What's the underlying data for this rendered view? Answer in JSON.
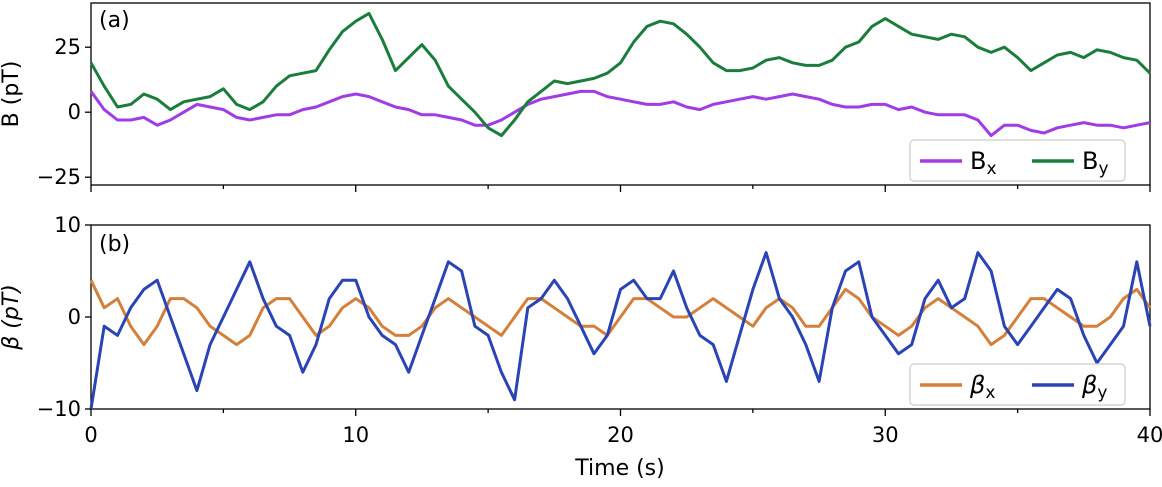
{
  "figure": {
    "xlabel": "Time (s)",
    "x_ticks": [
      "0",
      "10",
      "20",
      "30",
      "40"
    ]
  },
  "chart_data": [
    {
      "type": "line",
      "panel_label": "(a)",
      "ylabel": "B (pT)",
      "xlim": [
        0,
        40
      ],
      "ylim": [
        -28,
        42
      ],
      "y_ticks": [
        "25",
        "0",
        "−25"
      ],
      "grid": false,
      "legend_placement": "bottom-right",
      "series": [
        {
          "name": "Bx",
          "name_main": "B",
          "name_sub": "x",
          "color": "#a03be6",
          "x": [
            0,
            0.5,
            1,
            1.5,
            2,
            2.5,
            3,
            3.5,
            4,
            4.5,
            5,
            5.5,
            6,
            6.5,
            7,
            7.5,
            8,
            8.5,
            9,
            9.5,
            10,
            10.5,
            11,
            11.5,
            12,
            12.5,
            13,
            13.5,
            14,
            14.5,
            15,
            15.5,
            16,
            16.5,
            17,
            17.5,
            18,
            18.5,
            19,
            19.5,
            20,
            20.5,
            21,
            21.5,
            22,
            22.5,
            23,
            23.5,
            24,
            24.5,
            25,
            25.5,
            26,
            26.5,
            27,
            27.5,
            28,
            28.5,
            29,
            29.5,
            30,
            30.5,
            31,
            31.5,
            32,
            32.5,
            33,
            33.5,
            34,
            34.5,
            35,
            35.5,
            36,
            36.5,
            37,
            37.5,
            38,
            38.5,
            39,
            39.5,
            40
          ],
          "values": [
            8,
            1,
            -3,
            -3,
            -2,
            -5,
            -3,
            0,
            3,
            2,
            1,
            -2,
            -3,
            -2,
            -1,
            -1,
            1,
            2,
            4,
            6,
            7,
            6,
            4,
            2,
            1,
            -1,
            -1,
            -2,
            -3,
            -5,
            -5,
            -3,
            0,
            3,
            5,
            6,
            7,
            8,
            8,
            6,
            5,
            4,
            3,
            3,
            4,
            2,
            1,
            3,
            4,
            5,
            6,
            5,
            6,
            7,
            6,
            5,
            3,
            2,
            2,
            3,
            3,
            1,
            2,
            0,
            -1,
            -1,
            -1,
            -3,
            -9,
            -5,
            -5,
            -7,
            -8,
            -6,
            -5,
            -4,
            -5,
            -5,
            -6,
            -5,
            -4
          ]
        },
        {
          "name": "By",
          "name_main": "B",
          "name_sub": "y",
          "color": "#1b7d3c",
          "x": [
            0,
            0.5,
            1,
            1.5,
            2,
            2.5,
            3,
            3.5,
            4,
            4.5,
            5,
            5.5,
            6,
            6.5,
            7,
            7.5,
            8,
            8.5,
            9,
            9.5,
            10,
            10.5,
            11,
            11.5,
            12,
            12.5,
            13,
            13.5,
            14,
            14.5,
            15,
            15.5,
            16,
            16.5,
            17,
            17.5,
            18,
            18.5,
            19,
            19.5,
            20,
            20.5,
            21,
            21.5,
            22,
            22.5,
            23,
            23.5,
            24,
            24.5,
            25,
            25.5,
            26,
            26.5,
            27,
            27.5,
            28,
            28.5,
            29,
            29.5,
            30,
            30.5,
            31,
            31.5,
            32,
            32.5,
            33,
            33.5,
            34,
            34.5,
            35,
            35.5,
            36,
            36.5,
            37,
            37.5,
            38,
            38.5,
            39,
            39.5,
            40
          ],
          "values": [
            19,
            10,
            2,
            3,
            7,
            5,
            1,
            4,
            5,
            6,
            9,
            3,
            1,
            4,
            10,
            14,
            15,
            16,
            24,
            31,
            35,
            38,
            28,
            16,
            21,
            26,
            20,
            10,
            5,
            0,
            -6,
            -9,
            -3,
            4,
            8,
            12,
            11,
            12,
            13,
            15,
            19,
            27,
            33,
            35,
            34,
            30,
            25,
            19,
            16,
            16,
            17,
            20,
            21,
            19,
            18,
            18,
            20,
            25,
            27,
            33,
            36,
            33,
            30,
            29,
            28,
            30,
            29,
            25,
            23,
            25,
            21,
            16,
            19,
            22,
            23,
            21,
            24,
            23,
            21,
            20,
            15
          ]
        }
      ]
    },
    {
      "type": "line",
      "panel_label": "(b)",
      "ylabel": "β (pT)",
      "xlim": [
        0,
        40
      ],
      "ylim": [
        -10,
        10
      ],
      "y_ticks": [
        "10",
        "0",
        "−10"
      ],
      "grid": false,
      "legend_placement": "bottom-right",
      "series": [
        {
          "name": "βx",
          "name_main": "β",
          "name_sub": "x",
          "color": "#d4803b",
          "x": [
            0,
            0.5,
            1,
            1.5,
            2,
            2.5,
            3,
            3.5,
            4,
            4.5,
            5,
            5.5,
            6,
            6.5,
            7,
            7.5,
            8,
            8.5,
            9,
            9.5,
            10,
            10.5,
            11,
            11.5,
            12,
            12.5,
            13,
            13.5,
            14,
            14.5,
            15,
            15.5,
            16,
            16.5,
            17,
            17.5,
            18,
            18.5,
            19,
            19.5,
            20,
            20.5,
            21,
            21.5,
            22,
            22.5,
            23,
            23.5,
            24,
            24.5,
            25,
            25.5,
            26,
            26.5,
            27,
            27.5,
            28,
            28.5,
            29,
            29.5,
            30,
            30.5,
            31,
            31.5,
            32,
            32.5,
            33,
            33.5,
            34,
            34.5,
            35,
            35.5,
            36,
            36.5,
            37,
            37.5,
            38,
            38.5,
            39,
            39.5,
            40
          ],
          "values": [
            4,
            1,
            2,
            -1,
            -3,
            -1,
            2,
            2,
            1,
            -1,
            -2,
            -3,
            -2,
            1,
            2,
            2,
            0,
            -2,
            -1,
            1,
            2,
            1,
            -1,
            -2,
            -2,
            -1,
            1,
            2,
            1,
            0,
            -1,
            -2,
            0,
            2,
            2,
            1,
            0,
            -1,
            -1,
            -2,
            0,
            2,
            2,
            1,
            0,
            0,
            1,
            2,
            1,
            0,
            -1,
            1,
            2,
            1,
            -1,
            -1,
            1,
            3,
            2,
            0,
            -1,
            -2,
            -1,
            1,
            2,
            1,
            0,
            -1,
            -3,
            -2,
            0,
            2,
            2,
            1,
            0,
            -1,
            -1,
            0,
            2,
            3,
            1
          ]
        },
        {
          "name": "βy",
          "name_main": "β",
          "name_sub": "y",
          "color": "#2b44b5",
          "x": [
            0,
            0.5,
            1,
            1.5,
            2,
            2.5,
            3,
            3.5,
            4,
            4.5,
            5,
            5.5,
            6,
            6.5,
            7,
            7.5,
            8,
            8.5,
            9,
            9.5,
            10,
            10.5,
            11,
            11.5,
            12,
            12.5,
            13,
            13.5,
            14,
            14.5,
            15,
            15.5,
            16,
            16.5,
            17,
            17.5,
            18,
            18.5,
            19,
            19.5,
            20,
            20.5,
            21,
            21.5,
            22,
            22.5,
            23,
            23.5,
            24,
            24.5,
            25,
            25.5,
            26,
            26.5,
            27,
            27.5,
            28,
            28.5,
            29,
            29.5,
            30,
            30.5,
            31,
            31.5,
            32,
            32.5,
            33,
            33.5,
            34,
            34.5,
            35,
            35.5,
            36,
            36.5,
            37,
            37.5,
            38,
            38.5,
            39,
            39.5,
            40
          ],
          "values": [
            -10,
            -1,
            -2,
            1,
            3,
            4,
            0,
            -4,
            -8,
            -3,
            0,
            3,
            6,
            2,
            -1,
            -2,
            -6,
            -3,
            2,
            4,
            4,
            0,
            -2,
            -3,
            -6,
            -2,
            2,
            6,
            5,
            -1,
            -2,
            -6,
            -9,
            1,
            2,
            4,
            2,
            -1,
            -4,
            -2,
            3,
            4,
            2,
            2,
            5,
            1,
            -2,
            -3,
            -7,
            -2,
            3,
            7,
            2,
            0,
            -3,
            -7,
            1,
            5,
            6,
            0,
            -2,
            -4,
            -3,
            2,
            4,
            1,
            2,
            7,
            5,
            -1,
            -3,
            -1,
            1,
            3,
            2,
            -2,
            -5,
            -3,
            -1,
            6,
            -1
          ]
        }
      ]
    }
  ]
}
